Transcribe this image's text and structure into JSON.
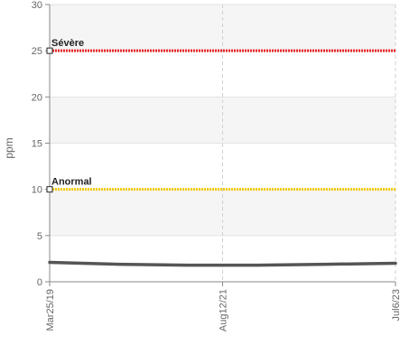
{
  "chart_data": {
    "type": "line",
    "ylabel": "ppm",
    "ylim": [
      0,
      30
    ],
    "yticks": [
      0,
      5,
      10,
      15,
      20,
      25,
      30
    ],
    "x_ticks": [
      "Mar25/19",
      "Aug12/21",
      "Jul6/23"
    ],
    "series": [
      {
        "values": [
          2.1,
          1.9,
          1.8,
          1.8,
          1.9,
          2.0
        ],
        "color": "#555555"
      }
    ],
    "thresholds": [
      {
        "label": "Sévère",
        "value": 25,
        "color": "#e8262b"
      },
      {
        "label": "Anormal",
        "value": 10,
        "color": "#f2cc0c"
      }
    ],
    "grid": true
  }
}
